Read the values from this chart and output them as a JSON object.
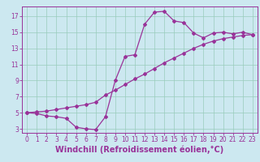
{
  "title": "",
  "xlabel": "Windchill (Refroidissement éolien,°C)",
  "ylabel": "",
  "bg_color": "#cce8f0",
  "plot_bg_color": "#cce8f0",
  "grid_color": "#99ccbb",
  "line_color": "#993399",
  "xlim": [
    -0.5,
    23.5
  ],
  "ylim": [
    2.5,
    18.2
  ],
  "xticks": [
    0,
    1,
    2,
    3,
    4,
    5,
    6,
    7,
    8,
    9,
    10,
    11,
    12,
    13,
    14,
    15,
    16,
    17,
    18,
    19,
    20,
    21,
    22,
    23
  ],
  "yticks": [
    3,
    5,
    7,
    9,
    11,
    13,
    15,
    17
  ],
  "line1_x": [
    0,
    1,
    2,
    3,
    4,
    5,
    6,
    7,
    8,
    9,
    10,
    11,
    12,
    13,
    14,
    15,
    16,
    17,
    18,
    19,
    20,
    21,
    22,
    23
  ],
  "line1_y": [
    5.0,
    4.9,
    4.6,
    4.5,
    4.3,
    3.2,
    3.0,
    2.9,
    4.5,
    9.0,
    12.0,
    12.2,
    16.0,
    17.5,
    17.6,
    16.4,
    16.2,
    14.9,
    14.3,
    14.9,
    15.0,
    14.8,
    15.0,
    14.7
  ],
  "line2_x": [
    0,
    1,
    2,
    3,
    4,
    5,
    6,
    7,
    8,
    9,
    10,
    11,
    12,
    13,
    14,
    15,
    16,
    17,
    18,
    19,
    20,
    21,
    22,
    23
  ],
  "line2_y": [
    5.0,
    5.1,
    5.2,
    5.4,
    5.6,
    5.8,
    6.0,
    6.3,
    7.2,
    7.8,
    8.5,
    9.2,
    9.8,
    10.5,
    11.2,
    11.8,
    12.4,
    13.0,
    13.5,
    13.9,
    14.2,
    14.4,
    14.6,
    14.7
  ],
  "tick_fontsize": 5.5,
  "xlabel_fontsize": 7.0,
  "marker": "D",
  "markersize": 2.0,
  "linewidth": 0.9
}
